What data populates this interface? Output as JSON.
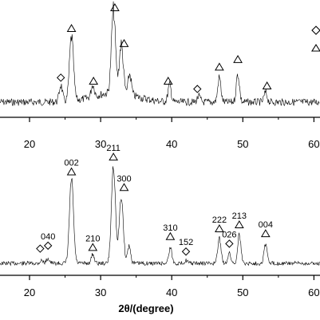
{
  "chart_data": [
    {
      "type": "line",
      "xlim": [
        15,
        62
      ],
      "x_ticks": [
        "20",
        "30",
        "40",
        "50",
        "60"
      ],
      "xlabel": "",
      "ylabel": "",
      "grid": false,
      "legend": {
        "placement": "top-right",
        "entries": [
          {
            "marker": "diamond"
          },
          {
            "marker": "triangle"
          }
        ]
      },
      "series": [
        {
          "peaks": [
            {
              "x": 24.4,
              "h": 0.18
            },
            {
              "x": 25.9,
              "h": 0.68
            },
            {
              "x": 28.9,
              "h": 0.13
            },
            {
              "x": 31.8,
              "h": 0.88
            },
            {
              "x": 32.9,
              "h": 0.52
            },
            {
              "x": 34.1,
              "h": 0.22
            },
            {
              "x": 39.7,
              "h": 0.18
            },
            {
              "x": 43.8,
              "h": 0.06
            },
            {
              "x": 46.7,
              "h": 0.26
            },
            {
              "x": 49.3,
              "h": 0.3
            },
            {
              "x": 53.2,
              "h": 0.1
            }
          ]
        }
      ],
      "markers": [
        {
          "x": 24.4,
          "y": 0.26,
          "symbol": "diamond"
        },
        {
          "x": 25.9,
          "y": 0.78,
          "symbol": "triangle"
        },
        {
          "x": 29.0,
          "y": 0.22,
          "symbol": "triangle"
        },
        {
          "x": 32.0,
          "y": 1.0,
          "symbol": "triangle"
        },
        {
          "x": 33.3,
          "y": 0.62,
          "symbol": "triangle"
        },
        {
          "x": 39.5,
          "y": 0.22,
          "symbol": "triangle"
        },
        {
          "x": 43.6,
          "y": 0.14,
          "symbol": "diamond"
        },
        {
          "x": 46.7,
          "y": 0.37,
          "symbol": "triangle"
        },
        {
          "x": 49.3,
          "y": 0.45,
          "symbol": "triangle"
        },
        {
          "x": 53.4,
          "y": 0.17,
          "symbol": "triangle"
        }
      ]
    },
    {
      "type": "line",
      "xlim": [
        15,
        62
      ],
      "x_ticks": [
        "20",
        "30",
        "40",
        "50",
        "60"
      ],
      "xlabel": "2θ/(degree)",
      "ylabel": "",
      "grid": false,
      "series": [
        {
          "peaks": [
            {
              "x": 21.7,
              "h": 0.03
            },
            {
              "x": 22.6,
              "h": 0.05
            },
            {
              "x": 25.9,
              "h": 0.86
            },
            {
              "x": 28.9,
              "h": 0.09
            },
            {
              "x": 31.8,
              "h": 1.0
            },
            {
              "x": 32.9,
              "h": 0.68
            },
            {
              "x": 34.0,
              "h": 0.18
            },
            {
              "x": 39.8,
              "h": 0.16
            },
            {
              "x": 42.0,
              "h": 0.03
            },
            {
              "x": 46.7,
              "h": 0.26
            },
            {
              "x": 48.1,
              "h": 0.1
            },
            {
              "x": 49.5,
              "h": 0.3
            },
            {
              "x": 53.2,
              "h": 0.2
            }
          ]
        }
      ],
      "markers": [
        {
          "x": 21.5,
          "y": 0.15,
          "symbol": "diamond",
          "label": ""
        },
        {
          "x": 22.6,
          "y": 0.18,
          "symbol": "diamond",
          "label": "040"
        },
        {
          "x": 25.9,
          "y": 0.93,
          "symbol": "triangle",
          "label": "002"
        },
        {
          "x": 28.9,
          "y": 0.16,
          "symbol": "triangle",
          "label": "210"
        },
        {
          "x": 31.8,
          "y": 1.08,
          "symbol": "triangle",
          "label": "211"
        },
        {
          "x": 33.3,
          "y": 0.77,
          "symbol": "triangle",
          "label": "300"
        },
        {
          "x": 39.8,
          "y": 0.27,
          "symbol": "triangle",
          "label": "310"
        },
        {
          "x": 42.0,
          "y": 0.12,
          "symbol": "diamond",
          "label": "152"
        },
        {
          "x": 46.7,
          "y": 0.35,
          "symbol": "triangle",
          "label": "222"
        },
        {
          "x": 48.1,
          "y": 0.2,
          "symbol": "diamond",
          "label": "026"
        },
        {
          "x": 49.5,
          "y": 0.39,
          "symbol": "triangle",
          "label": "213"
        },
        {
          "x": 53.2,
          "y": 0.3,
          "symbol": "triangle",
          "label": "004"
        }
      ]
    }
  ]
}
